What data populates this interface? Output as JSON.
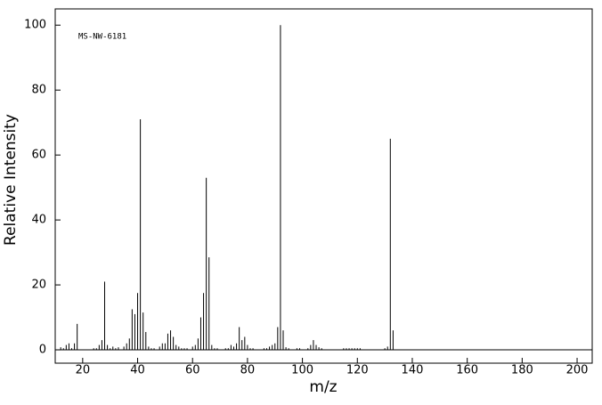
{
  "chart_data": {
    "type": "stem",
    "annotation": "MS-NW-6181",
    "x_label": "m/z",
    "y_label": "Relative Intensity",
    "x": [
      12,
      13,
      14,
      15,
      16,
      17,
      18,
      24,
      25,
      26,
      27,
      28,
      29,
      30,
      31,
      32,
      33,
      35,
      36,
      37,
      38,
      39,
      40,
      41,
      42,
      43,
      44,
      45,
      46,
      48,
      49,
      50,
      51,
      52,
      53,
      54,
      55,
      56,
      57,
      58,
      60,
      61,
      62,
      63,
      64,
      65,
      66,
      67,
      68,
      69,
      72,
      73,
      74,
      75,
      76,
      77,
      78,
      79,
      80,
      81,
      82,
      86,
      87,
      88,
      89,
      90,
      91,
      92,
      93,
      94,
      95,
      98,
      99,
      102,
      103,
      104,
      105,
      106,
      107,
      115,
      116,
      117,
      118,
      119,
      120,
      121,
      130,
      131,
      132,
      133
    ],
    "values": [
      0.8,
      0.5,
      1.5,
      2,
      0.5,
      2,
      8,
      0.5,
      0.5,
      1.5,
      3,
      21,
      1.5,
      0.5,
      1,
      0.5,
      0.8,
      1,
      2,
      3.5,
      12.5,
      11,
      17.5,
      71,
      11.5,
      5.5,
      1,
      0.5,
      0.5,
      1,
      2,
      2,
      5,
      6,
      4,
      1.5,
      1,
      0.5,
      0.5,
      0.5,
      1,
      1.5,
      3.5,
      10,
      17.5,
      53,
      28.5,
      1.5,
      0.5,
      0.5,
      0.5,
      0.5,
      1.5,
      1,
      2,
      7,
      3,
      4,
      1.5,
      0.5,
      0.5,
      0.5,
      0.5,
      1,
      1.5,
      2,
      7,
      100,
      6,
      0.8,
      0.5,
      0.5,
      0.5,
      0.5,
      1.5,
      3,
      1.5,
      0.8,
      0.5,
      0.5,
      0.5,
      0.5,
      0.5,
      0.5,
      0.5,
      0.5,
      0.5,
      1,
      65,
      6
    ],
    "color": "#000000",
    "xlim": [
      10,
      205.5
    ],
    "xticks": [
      20,
      40,
      60,
      80,
      100,
      120,
      140,
      160,
      180,
      200
    ],
    "ylim": [
      -4.1,
      105
    ],
    "yticks": [
      0,
      20,
      40,
      60,
      80,
      100
    ]
  }
}
